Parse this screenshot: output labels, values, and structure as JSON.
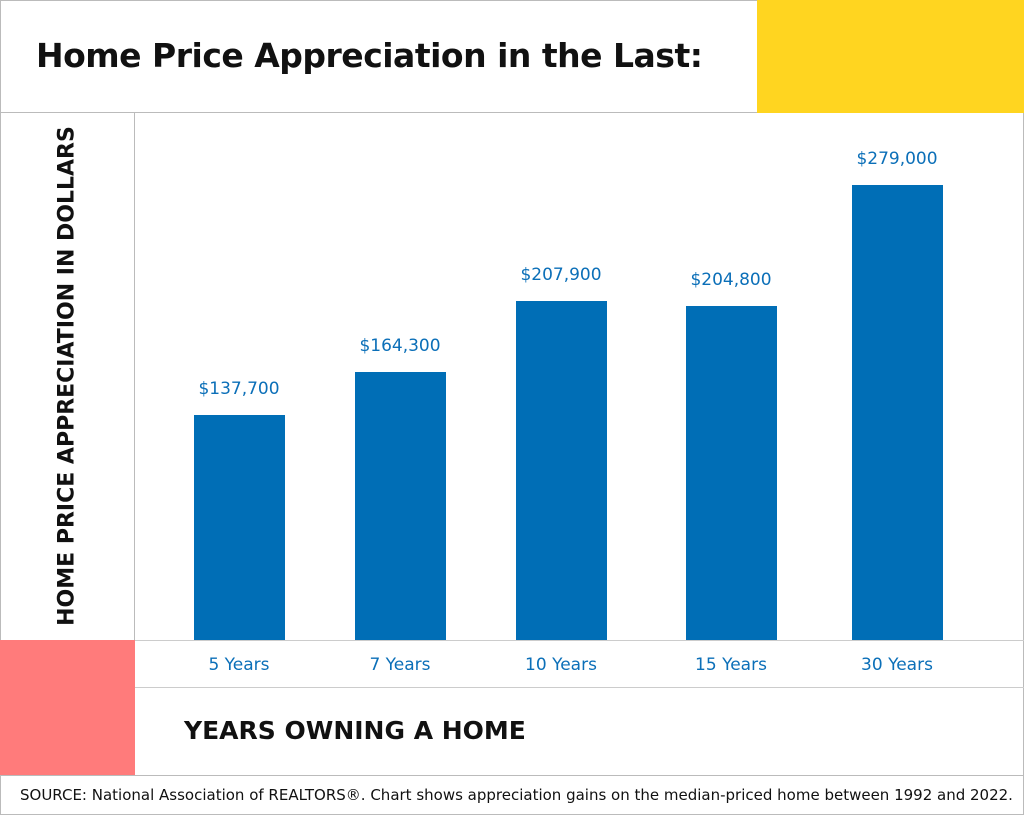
{
  "title": "Home Price Appreciation in the Last:",
  "colors": {
    "bar": "#006EB6",
    "label": "#0B6FB8",
    "yellow": "#FFD520",
    "pink": "#FF7B7B"
  },
  "source": "SOURCE: National Association of REALTORS®. Chart shows appreciation gains on the median-priced home between 1992 and 2022.",
  "chart_data": {
    "type": "bar",
    "title": "Home Price Appreciation in the Last:",
    "xlabel": "YEARS OWNING A HOME",
    "ylabel": "HOME PRICE APPRECIATION IN DOLLARS",
    "categories": [
      "5 Years",
      "7 Years",
      "10 Years",
      "15 Years",
      "30 Years"
    ],
    "values": [
      137700,
      164300,
      207900,
      204800,
      279000
    ],
    "data_labels": [
      "$137,700",
      "$164,300",
      "$207,900",
      "$204,800",
      "$279,000"
    ],
    "grid": false
  }
}
